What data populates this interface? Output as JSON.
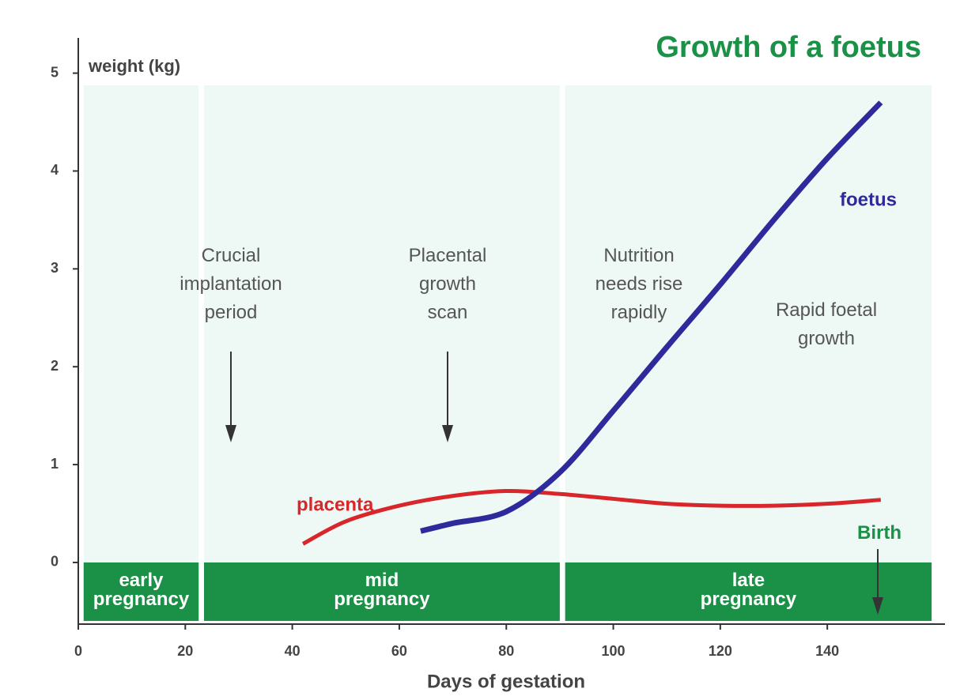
{
  "chart_data": {
    "type": "line",
    "title": "Growth of a foetus",
    "y_label": "weight (kg)",
    "x_label": "Days of gestation",
    "xlim": [
      0,
      162
    ],
    "ylim": [
      -0.63,
      5.36
    ],
    "xticks": [
      0,
      20,
      40,
      60,
      80,
      100,
      120,
      140
    ],
    "yticks": [
      0,
      1,
      2,
      3,
      4,
      5
    ],
    "series": [
      {
        "name": "placenta",
        "color": "#d8262b",
        "x": [
          42,
          50,
          60,
          70,
          80,
          90,
          100,
          110,
          120,
          130,
          140,
          150
        ],
        "values": [
          0.19,
          0.42,
          0.58,
          0.68,
          0.73,
          0.7,
          0.65,
          0.6,
          0.58,
          0.58,
          0.6,
          0.64
        ]
      },
      {
        "name": "foetus",
        "color": "#2e2a9c",
        "x": [
          64,
          70,
          80,
          90,
          100,
          110,
          120,
          130,
          140,
          150
        ],
        "values": [
          0.32,
          0.4,
          0.52,
          0.92,
          1.55,
          2.2,
          2.84,
          3.5,
          4.13,
          4.7
        ]
      }
    ],
    "annotations": [
      {
        "lines": [
          "Crucial",
          "implantation",
          "period"
        ]
      },
      {
        "lines": [
          "Placental",
          "growth",
          "scan"
        ]
      },
      {
        "lines": [
          "Nutrition",
          "needs rise",
          "rapidly"
        ]
      },
      {
        "lines": [
          "Rapid foetal",
          "growth"
        ]
      },
      {
        "lines": [
          "Birth"
        ]
      }
    ],
    "stages": [
      {
        "lines": [
          "early",
          "pregnancy"
        ],
        "start": 1,
        "end": 22.5
      },
      {
        "lines": [
          "mid",
          "pregnancy"
        ],
        "start": 23.5,
        "end": 90
      },
      {
        "lines": [
          "late",
          "pregnancy"
        ],
        "start": 91,
        "end": 159.5
      }
    ]
  }
}
